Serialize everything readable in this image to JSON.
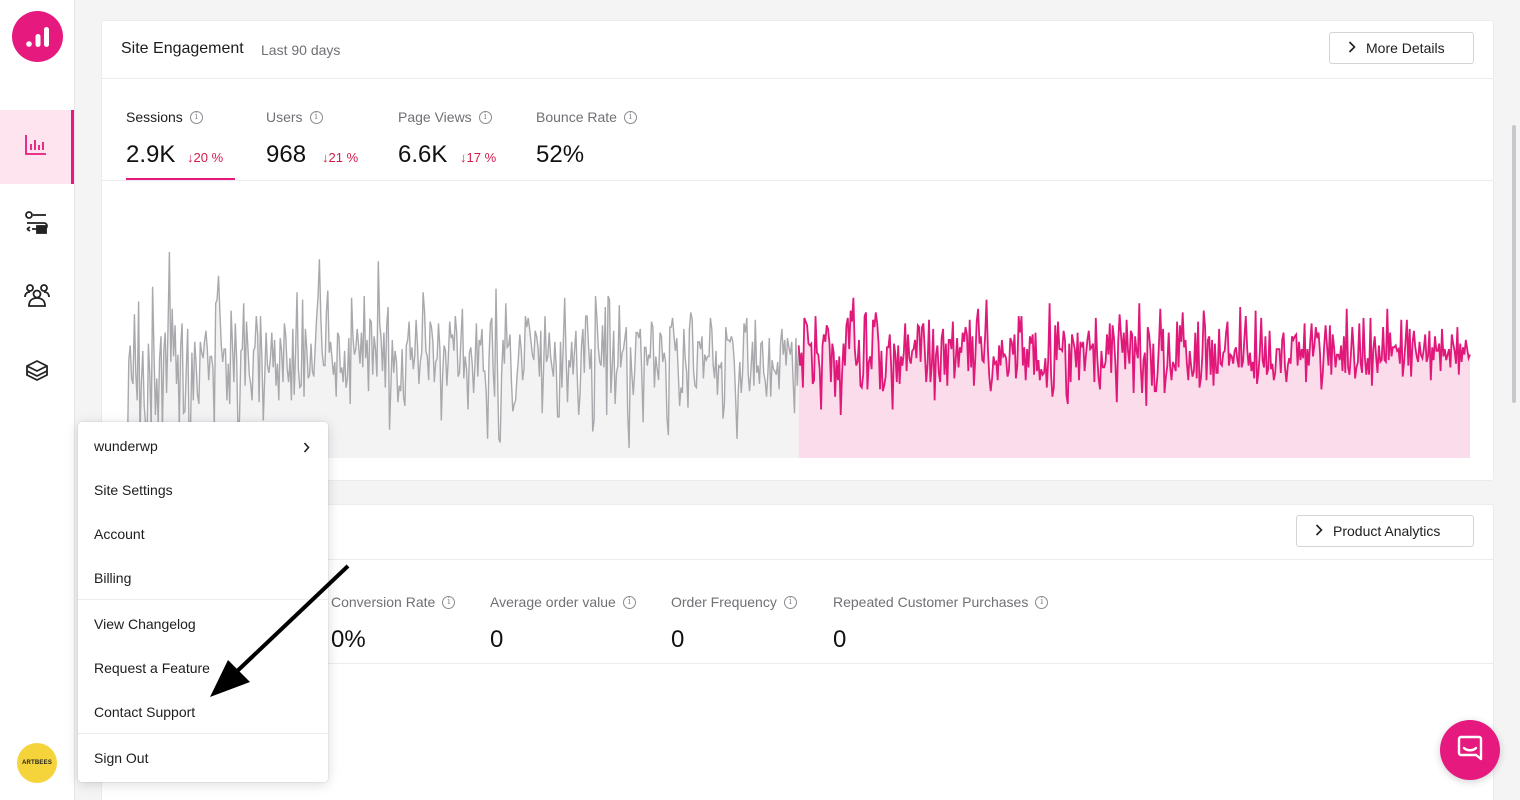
{
  "sidebar": {
    "avatar_text": "ARTBEES",
    "nav": [
      "analytics-icon",
      "funnels-icon",
      "audience-icon",
      "products-icon"
    ]
  },
  "engagement": {
    "title": "Site Engagement",
    "subtitle": "Last 90 days",
    "more_details": "More Details",
    "metrics": [
      {
        "label": "Sessions",
        "value": "2.9K",
        "change": "20 %"
      },
      {
        "label": "Users",
        "value": "968",
        "change": "21 %"
      },
      {
        "label": "Page Views",
        "value": "6.6K",
        "change": "17 %"
      },
      {
        "label": "Bounce Rate",
        "value": "52%",
        "change": ""
      }
    ]
  },
  "products": {
    "button": "Product Analytics",
    "metrics": [
      {
        "label": "Conversion Rate",
        "value": "0%"
      },
      {
        "label": "Average order value",
        "value": "0"
      },
      {
        "label": "Order Frequency",
        "value": "0"
      },
      {
        "label": "Repeated Customer Purchases",
        "value": "0"
      }
    ]
  },
  "menu": {
    "items": [
      "wunderwp",
      "Site Settings",
      "Account",
      "Billing",
      "View Changelog",
      "Request a Feature",
      "Contact Support",
      "Sign Out"
    ]
  },
  "colors": {
    "accent": "#e6197e",
    "negative": "#d31c4a"
  },
  "chart_data": {
    "type": "area",
    "series": [
      {
        "values": [
          58,
          42,
          93,
          101,
          83,
          80,
          118,
          86,
          71,
          125,
          53,
          81,
          98,
          68,
          58,
          46,
          102,
          85,
          56,
          133,
          97,
          63,
          83,
          59,
          94,
          106,
          55,
          98,
          108,
          75,
          110,
          152,
          92,
          121,
          95,
          112,
          80,
          96,
          57,
          101,
          113,
          64,
          65,
          88,
          110,
          52,
          55,
          97,
          71,
          103,
          91,
          74,
          69,
          103,
          97,
          94,
          103,
          109,
          99,
          82,
          95,
          95,
          89,
          57,
          124,
          126,
          139,
          119,
          101,
          92,
          99,
          99,
          71,
          91,
          69,
          120,
          101,
          81,
          113,
          93,
          50,
          61,
          98,
          99,
          124,
          79,
          114,
          100,
          85,
          80,
          71,
          98,
          100,
          117,
          107,
          70,
          117,
          94,
          60,
          84,
          108,
          90,
          86,
          94,
          108,
          89,
          104,
          79,
          91,
          71,
          105,
          98,
          81,
          113,
          106,
          88,
          81,
          94,
          71,
          110,
          74,
          98,
          130,
          88,
          78,
          79,
          126,
          73,
          110,
          99,
          83,
          85,
          102,
          87,
          84,
          100,
          116,
          127,
          148,
          117,
          97,
          90,
          90,
          119,
          131,
          97,
          103,
          94,
          85,
          92,
          73,
          108,
          106,
          86,
          89,
          81,
          98,
          78,
          83,
          105,
          69,
          127,
          105,
          96,
          99,
          110,
          101,
          91,
          108,
          89,
          128,
          94,
          104,
          76,
          115,
          114,
          85,
          106,
          99,
          84,
          147,
          113,
          105,
          87,
          108,
          78,
          112,
          122,
          55,
          79,
          104,
          86,
          98,
          92,
          70,
          79,
          76,
          99,
          73,
          68,
          101,
          104,
          114,
          93,
          100,
          88,
          95,
          115,
          101,
          80,
          92,
          97,
          130,
          120,
          98,
          95,
          82,
          114,
          111,
          103,
          81,
          92,
          94,
          113,
          99,
          60,
          86,
          101,
          98,
          79,
          94,
          114,
          105,
          107,
          98,
          117,
          108,
          84,
          86,
          104,
          121,
          83,
          95,
          88,
          66,
          97,
          100,
          91,
          75,
          91,
          113,
          84,
          104,
          101,
          110,
          87,
          87,
          75,
          50,
          94,
          113,
          116,
          87,
          73,
          132,
          90,
          50,
          48,
          85,
          104,
          91,
          124,
          100,
          101,
          107,
          82,
          65,
          69,
          71,
          84,
          94,
          107,
          99,
          82,
          88,
          117,
          111,
          116,
          110,
          103,
          96,
          93,
          109,
          106,
          100,
          84,
          109,
          64,
          88,
          117,
          92,
          95,
          108,
          95,
          89,
          84,
          103,
          90,
          62,
          62,
          103,
          78,
          102,
          127,
          95,
          70,
          93,
          89,
          103,
          85,
          98,
          109,
          83,
          63,
          75,
          101,
          110,
          86,
          117,
          117,
          101,
          88,
          99,
          54,
          60,
          128,
          116,
          100,
          92,
          90,
          112,
          89,
          122,
          63,
          128,
          126,
          75,
          90,
          109,
          69,
          86,
          90,
          123,
          89,
          97,
          99,
          105,
          111,
          64,
          45,
          100,
          85,
          74,
          87,
          108,
          108,
          105,
          110,
          87,
          59,
          100,
          100,
          90,
          96,
          94,
          114,
          111,
          78,
          95,
          88,
          82,
          108,
          106,
          92,
          97,
          92,
          61,
          52,
          111,
          111,
          116,
          106,
          98,
          105,
          87,
          68,
          78,
          75,
          110,
          94,
          87,
          67,
          110,
          119,
          115,
          87,
          79,
          78,
          103,
          103,
          99,
          106,
          83,
          96,
          93,
          95,
          95,
          116,
          110,
          90,
          83,
          98,
          74,
          90,
          89,
          92,
          61,
          69,
          111,
          104,
          104,
          103,
          106,
          103,
          93,
          73,
          50,
          78,
          92,
          75,
          86,
          113,
          108,
          116,
          85,
          76,
          89,
          103,
          79,
          115,
          86,
          90,
          80,
          102,
          103,
          86,
          82,
          73,
          86,
          105,
          73,
          93,
          88,
          87,
          85,
          92,
          77,
          102,
          110,
          96,
          104,
          90,
          105,
          100,
          96,
          103,
          82,
          64,
          105,
          79,
          101,
          90,
          97,
          78,
          116,
          114,
          112,
          102,
          101,
          102,
          80,
          82,
          117,
          97,
          96,
          88,
          66,
          101,
          107,
          103,
          112,
          110,
          102,
          81,
          102,
          97,
          73,
          93,
          82,
          95,
          63,
          86,
          102,
          90,
          112,
          116,
          99,
          120,
          114,
          127,
          99,
          90,
          92,
          104,
          79,
          78,
          85,
          117,
          119,
          77,
          92,
          95,
          88,
          115,
          111,
          119,
          113,
          102,
          77,
          98,
          76,
          79,
          84,
          100,
          100,
          107,
          89,
          66,
          102,
          96,
          81,
          101,
          80,
          95,
          90,
          97,
          113,
          87,
          107,
          94,
          91,
          98,
          99,
          104,
          94,
          112,
          111,
          92,
          111,
          113,
          98,
          81,
          91,
          115,
          81,
          90,
          110,
          71,
          96,
          101,
          86,
          81,
          105,
          110,
          85,
          102,
          79,
          104,
          104,
          99,
          114,
          83,
          93,
          105,
          89,
          100,
          97,
          108,
          103,
          111,
          107,
          87,
          115,
          89,
          106,
          79,
          94,
          114,
          121,
          102,
          106,
          93,
          92,
          106,
          126,
          99,
          84,
          76,
          83,
          95,
          91,
          92,
          82,
          101,
          90,
          104,
          95,
          96,
          94,
          84,
          87,
          105,
          103,
          96,
          107,
          83,
          90,
          117,
          108,
          117,
          90,
          100,
          82,
          99,
          89,
          106,
          102,
          107,
          85,
          108,
          87,
          93,
          82,
          88,
          85,
          86,
          94,
          78,
          93,
          124,
          86,
          73,
          78,
          112,
          93,
          114,
          99,
          99,
          98,
          109,
          104,
          74,
          69,
          102,
          81,
          107,
          103,
          99,
          89,
          108,
          82,
          103,
          100,
          103,
          87,
          96,
          104,
          109,
          99,
          100,
          102,
          81,
          116,
          95,
          83,
          77,
          98,
          89,
          89,
          92,
          107,
          96,
          113,
          86,
          112,
          105,
          91,
          70,
          103,
          118,
          107,
          97,
          108,
          88,
          115,
          98,
          91,
          109,
          107,
          75,
          106,
          98,
          94,
          124,
          90,
          75,
          93,
          97,
          68,
          111,
          107,
          98,
          79,
          102,
          76,
          76,
          85,
          101,
          121,
          98,
          110,
          75,
          84,
          90,
          108,
          90,
          82,
          92,
          90,
          87,
          114,
          89,
          112,
          103,
          119,
          100,
          104,
          91,
          82,
          98,
          90,
          84,
          87,
          108,
          83,
          114,
          78,
          83,
          95,
          120,
          111,
          82,
          104,
          106,
          85,
          104,
          79,
          102,
          86,
          86,
          110,
          91,
          90,
          97,
          98,
          108,
          114,
          90,
          96,
          95,
          91,
          98,
          100,
          93,
          89,
          122,
          89,
          92,
          105,
          117,
          99,
          90,
          97,
          87,
          92,
          83,
          120,
          80,
          86,
          97,
          116,
          93,
          89,
          106,
          85,
          88,
          109,
          88,
          91,
          82,
          86,
          99,
          99,
          99,
          86,
          104,
          108,
          89,
          81,
          90,
          94,
          91,
          106,
          104,
          106,
          107,
          90,
          103,
          93,
          99,
          94,
          113,
          81,
          99,
          90,
          103,
          113,
          95,
          101,
          111,
          105,
          108,
          97,
          77,
          86,
          101,
          112,
          100,
          90,
          112,
          85,
          107,
          100,
          89,
          96,
          96,
          93,
          101,
          87,
          106,
          86,
          121,
          89,
          85,
          96,
          111,
          99,
          83,
          89,
          92,
          113,
          91,
          86,
          116,
          94,
          85,
          94,
          85,
          116,
          79,
          99,
          106,
          95,
          86,
          101,
          92,
          93,
          111,
          93,
          92,
          121,
          93,
          108,
          95,
          100,
          100,
          101,
          98,
          99,
          91,
          115,
          84,
          92,
          103,
          115,
          90,
          110,
          84,
          102,
          109,
          100,
          95,
          92,
          103,
          96,
          94,
          99,
          107,
          92,
          95,
          109,
          82,
          100,
          93,
          106,
          98,
          98,
          102,
          87,
          110,
          95,
          99,
          93,
          96,
          99,
          89,
          107,
          102,
          98,
          91,
          111,
          85,
          102,
          92,
          100,
          96,
          104,
          99,
          94,
          96
        ]
      }
    ]
  }
}
